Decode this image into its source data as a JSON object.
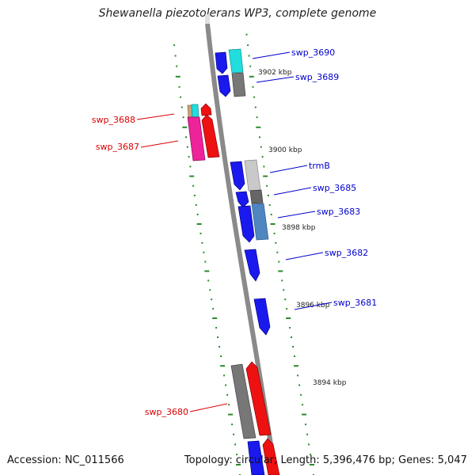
{
  "title": "Shewanella piezotolerans WP3, complete genome",
  "footer": {
    "accession": "Accession: NC_011566",
    "topology": "Topology: circular; Length: 5,396,476 bp; Genes: 5,047"
  },
  "kbp_labels": [
    "3902 kbp",
    "3900 kbp",
    "3898 kbp",
    "3896 kbp",
    "3894 kbp"
  ],
  "genes_right": [
    "swp_3690",
    "swp_3689",
    "trmB",
    "swp_3685",
    "swp_3683",
    "swp_3682",
    "swp_3681"
  ],
  "genes_left": [
    "swp_3688",
    "swp_3687",
    "swp_3680"
  ],
  "colors": {
    "forward_label": "#0000cc",
    "reverse_label": "#dd0000",
    "backbone": "#8a8a8a",
    "scale_ticks": "#2a8a2a",
    "gene_blue": "#1a1aee",
    "gene_cyan": "#22dddd",
    "gene_gray": "#777777",
    "gene_red": "#ee1111",
    "gene_pink": "#ee2299",
    "gene_steel": "#4f86c0"
  }
}
